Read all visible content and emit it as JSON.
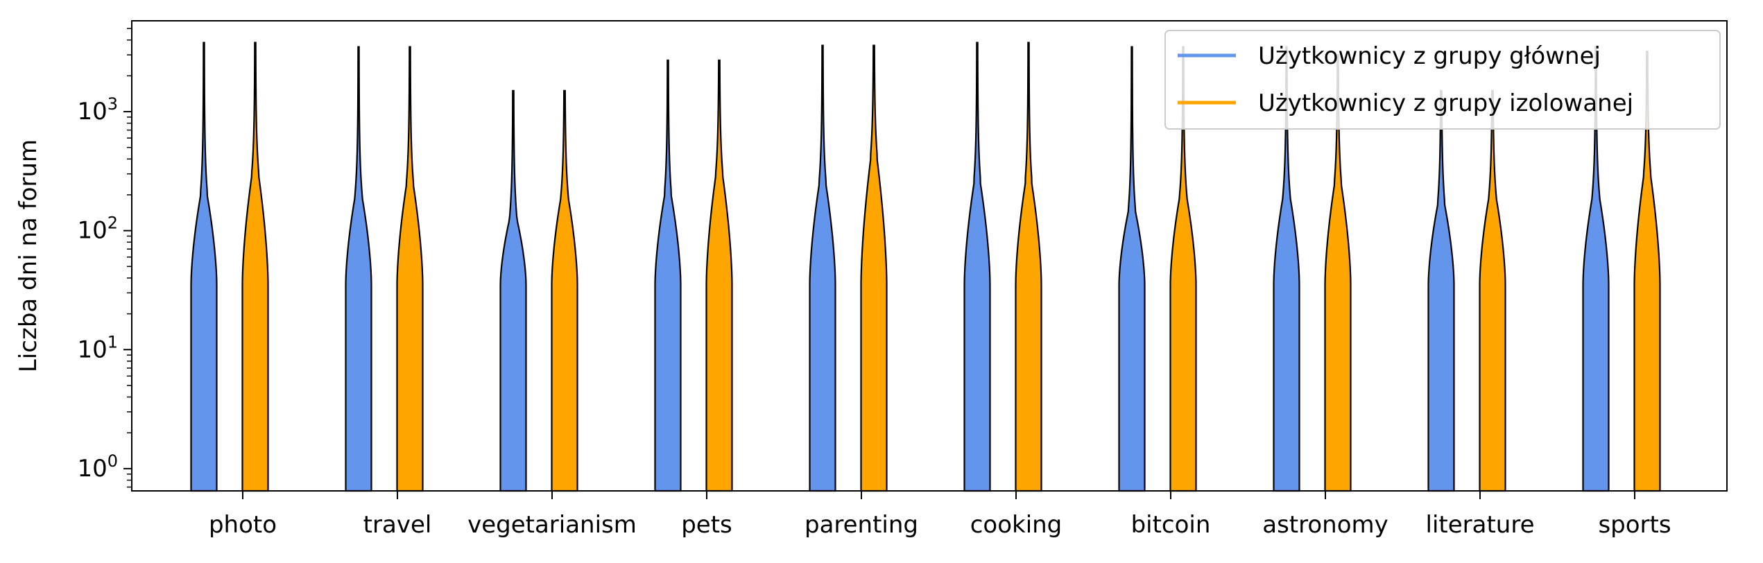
{
  "chart_data": {
    "type": "violin",
    "title": "",
    "xlabel": "",
    "ylabel": "Liczba dni na forum",
    "yscale": "log",
    "ylim": [
      0.65,
      5800
    ],
    "yticks": [
      {
        "value": 1,
        "exponent": "0"
      },
      {
        "value": 10,
        "exponent": "1"
      },
      {
        "value": 100,
        "exponent": "2"
      },
      {
        "value": 1000,
        "exponent": "3"
      }
    ],
    "y_tick_base": "10",
    "categories": [
      "photo",
      "travel",
      "vegetarianism",
      "pets",
      "parenting",
      "cooking",
      "bitcoin",
      "astronomy",
      "literature",
      "sports"
    ],
    "legend": {
      "position": "top-right",
      "entries": [
        "Użytkownicy z grupy głównej",
        "Użytkownicy z grupy izolowanej"
      ]
    },
    "series": [
      {
        "name": "Użytkownicy z grupy głównej",
        "color": "#6495ED",
        "max": [
          3800,
          3500,
          1500,
          2700,
          3600,
          3800,
          3500,
          3500,
          1500,
          3500
        ],
        "q3": [
          200,
          200,
          130,
          200,
          250,
          250,
          150,
          200,
          170,
          200
        ]
      },
      {
        "name": "Użytkownicy z grupy izolowanej",
        "color": "#FFA500",
        "max": [
          3800,
          3500,
          1500,
          2700,
          3600,
          3800,
          3500,
          3000,
          1500,
          3200
        ],
        "q3": [
          300,
          250,
          200,
          300,
          400,
          250,
          200,
          250,
          200,
          300
        ]
      }
    ]
  }
}
